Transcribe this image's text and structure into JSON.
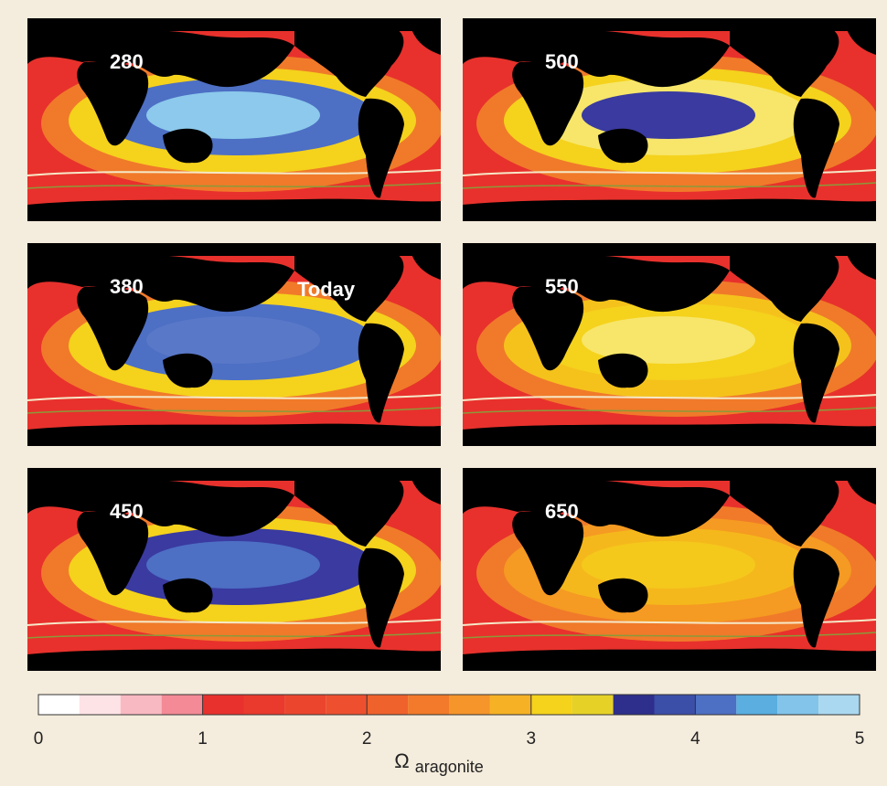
{
  "panels": [
    {
      "labels": [
        "280"
      ],
      "bands": [
        "#f07a2a",
        "#f5d21c",
        "#4d6fc4",
        "#8cc9ec"
      ]
    },
    {
      "labels": [
        "380",
        "Today"
      ],
      "bands": [
        "#f07a2a",
        "#f5d21c",
        "#4d6fc4",
        "#5a78c8"
      ]
    },
    {
      "labels": [
        "450"
      ],
      "bands": [
        "#f07a2a",
        "#f5d21c",
        "#3a3aa0",
        "#4d6fc4"
      ]
    },
    {
      "labels": [
        "500"
      ],
      "bands": [
        "#f07a2a",
        "#f5d21c",
        "#f7e66a",
        "#3a3aa0"
      ]
    },
    {
      "labels": [
        "550"
      ],
      "bands": [
        "#f07a2a",
        "#f5c21c",
        "#f5d21c",
        "#f7e66a"
      ]
    },
    {
      "labels": [
        "650"
      ],
      "bands": [
        "#f07a2a",
        "#f59a22",
        "#f5b81c",
        "#f5c81c"
      ]
    }
  ],
  "colorbar": {
    "levels": [
      0,
      0.25,
      0.5,
      0.75,
      1,
      1.25,
      1.5,
      1.75,
      2,
      2.25,
      2.5,
      2.75,
      3,
      3.25,
      3.5,
      3.75,
      4,
      4.25,
      4.5,
      4.75,
      5
    ],
    "colors": [
      "#ffffff",
      "#fde3e6",
      "#f9b9c2",
      "#f38a96",
      "#e8312c",
      "#e93a2d",
      "#ec452e",
      "#ee502f",
      "#f0622c",
      "#f27a2a",
      "#f5952a",
      "#f6b224",
      "#f5d21c",
      "#e6d227",
      "#2e2e8c",
      "#3b4ea8",
      "#4d6fc4",
      "#5aaee0",
      "#82c4ea",
      "#aad8f0"
    ],
    "xlim": [
      0,
      5
    ],
    "xticks": [
      0,
      1,
      2,
      3,
      4,
      5
    ],
    "label": "Ω",
    "label_sub": "aragonite"
  }
}
